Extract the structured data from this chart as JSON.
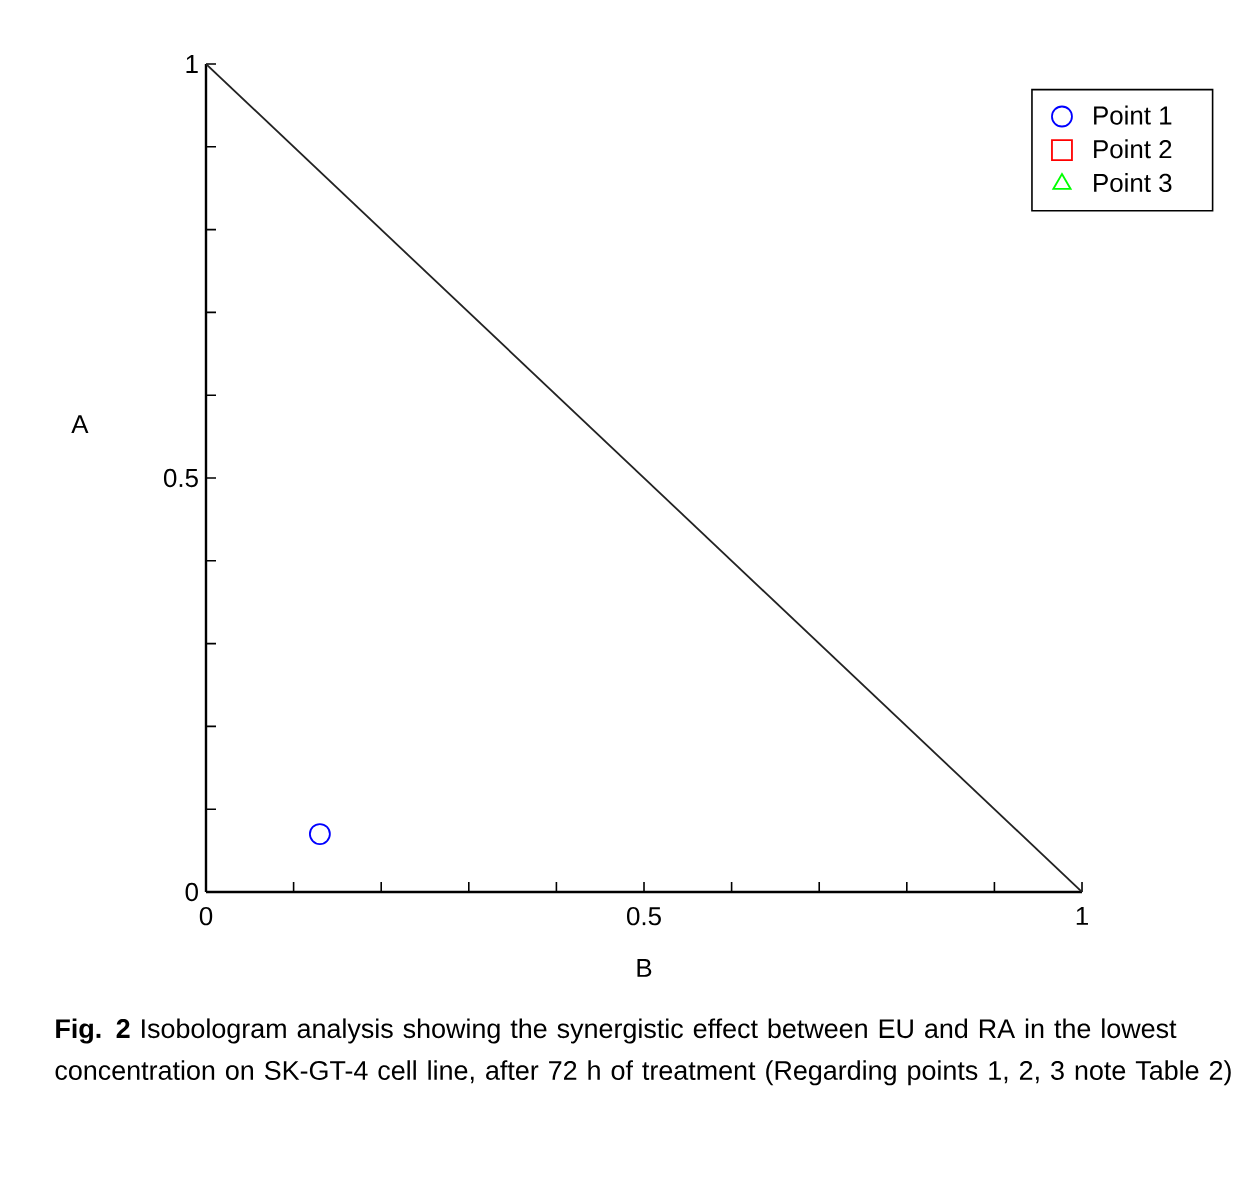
{
  "chart_data": {
    "type": "scatter",
    "xlabel": "B",
    "ylabel": "A",
    "xlim": [
      0,
      1
    ],
    "ylim": [
      0,
      1
    ],
    "xticks": [
      0,
      {
        "value": 0.1,
        "label": null
      },
      {
        "value": 0.2,
        "label": null
      },
      {
        "value": 0.3,
        "label": null
      },
      {
        "value": 0.4,
        "label": null
      },
      0.5,
      {
        "value": 0.6,
        "label": null
      },
      {
        "value": 0.7,
        "label": null
      },
      {
        "value": 0.8,
        "label": null
      },
      {
        "value": 0.9,
        "label": null
      },
      1
    ],
    "yticks": [
      0,
      {
        "value": 0.1,
        "label": null
      },
      {
        "value": 0.2,
        "label": null
      },
      {
        "value": 0.3,
        "label": null
      },
      {
        "value": 0.4,
        "label": null
      },
      0.5,
      {
        "value": 0.6,
        "label": null
      },
      {
        "value": 0.7,
        "label": null
      },
      {
        "value": 0.8,
        "label": null
      },
      {
        "value": 0.9,
        "label": null
      },
      1
    ],
    "legend": "top right",
    "grid": false,
    "series": [
      {
        "type": "line",
        "color": "#222222",
        "marker": "none",
        "line_style": "solid",
        "x": [
          0,
          1
        ],
        "values": [
          1,
          0
        ]
      },
      {
        "name": "Point 1",
        "color": "#0000ff",
        "marker": "circle",
        "x": [
          0.13
        ],
        "values": [
          0.07
        ]
      },
      {
        "name": "Point 2",
        "color": "#ff0000",
        "marker": "square",
        "x": [
          null
        ],
        "values": [
          null
        ]
      },
      {
        "name": "Point 3",
        "color": "#00ff00",
        "marker": "triangle",
        "x": [
          null
        ],
        "values": [
          null
        ]
      }
    ],
    "annotations": [
      "**Fig. 2** Isobologram analysis showing the synergistic effect between EU and RA in the lowest concentration on SK-GT-4 cell line, after 72 h of treatment (Regarding points 1, 2, 3 note Table 2)"
    ]
  }
}
